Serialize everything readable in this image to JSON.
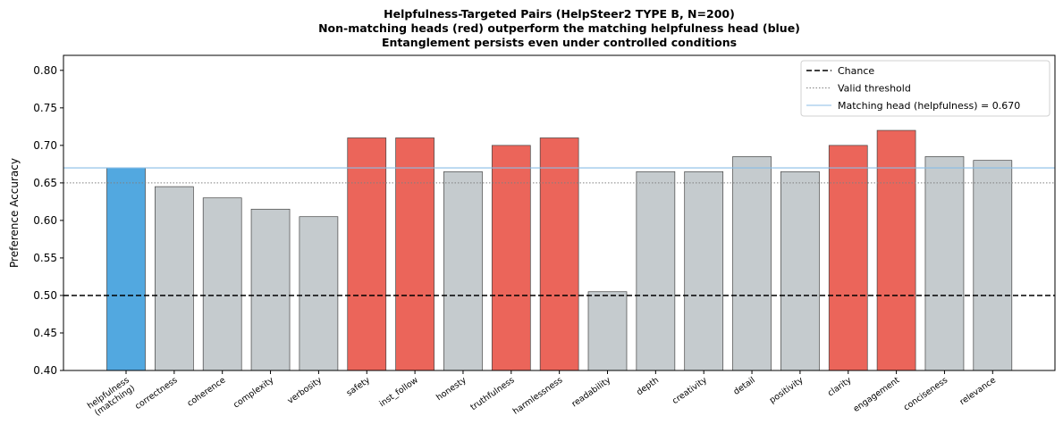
{
  "chart_data": {
    "type": "bar",
    "title": [
      "Helpfulness-Targeted Pairs (HelpSteer2 TYPE B, N=200)",
      "Non-matching heads (red) outperform the matching helpfulness head (blue)",
      "Entanglement persists even under controlled conditions"
    ],
    "xlabel": "",
    "ylabel": "Preference Accuracy",
    "ylim": [
      0.4,
      0.82
    ],
    "yticks": [
      "0.40",
      "0.45",
      "0.50",
      "0.55",
      "0.60",
      "0.65",
      "0.70",
      "0.75",
      "0.80"
    ],
    "categories": [
      "helpfulness\n(matching)",
      "correctness",
      "coherence",
      "complexity",
      "verbosity",
      "safety",
      "inst_follow",
      "honesty",
      "truthfulness",
      "harmlessness",
      "readability",
      "depth",
      "creativity",
      "detail",
      "positivity",
      "clarity",
      "engagement",
      "conciseness",
      "relevance"
    ],
    "values": [
      0.67,
      0.645,
      0.63,
      0.615,
      0.605,
      0.71,
      0.71,
      0.665,
      0.7,
      0.71,
      0.505,
      0.665,
      0.665,
      0.685,
      0.665,
      0.7,
      0.72,
      0.685,
      0.68
    ],
    "bar_groups": [
      "matching",
      "other",
      "other",
      "other",
      "other",
      "outperform",
      "outperform",
      "other",
      "outperform",
      "outperform",
      "other",
      "other",
      "other",
      "other",
      "other",
      "outperform",
      "outperform",
      "other",
      "other"
    ],
    "colors": {
      "matching": "#52a8e0",
      "outperform": "#eb655a",
      "other": "#c5cbce",
      "bar_edge": "#444444"
    },
    "reference_lines": [
      {
        "label": "Chance",
        "y": 0.5,
        "style": "dashed",
        "color": "#000000"
      },
      {
        "label": "Valid threshold",
        "y": 0.65,
        "style": "dotted",
        "color": "#808080"
      },
      {
        "label": "Matching head (helpfulness) = 0.670",
        "y": 0.67,
        "style": "solid",
        "color": "#88bde6"
      }
    ],
    "legend_position": "top-right",
    "grid": false
  }
}
